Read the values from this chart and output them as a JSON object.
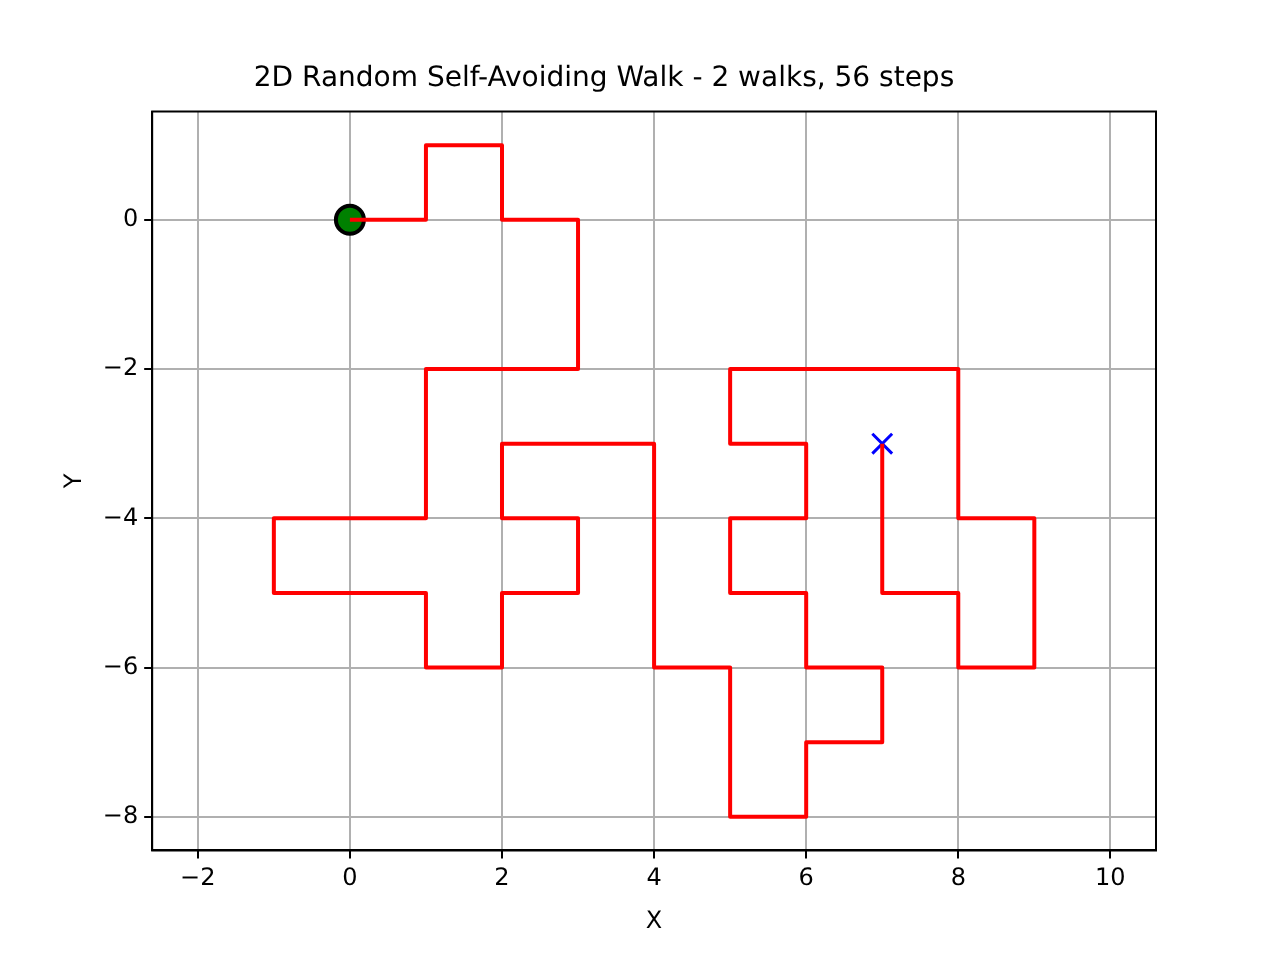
{
  "chart_data": {
    "type": "line",
    "title": "2D Random Self-Avoiding Walk - 2 walks, 56 steps",
    "xlabel": "X",
    "ylabel": "Y",
    "series": [
      {
        "type": "line",
        "color": "#ff0000",
        "marker": "none",
        "x": [
          0,
          1,
          1,
          2,
          2,
          3,
          3,
          1,
          1,
          -1,
          -1,
          1,
          1,
          2,
          2,
          3,
          3,
          2,
          2,
          4,
          4,
          5,
          5,
          6,
          6,
          7,
          7,
          6,
          6,
          5,
          5,
          6,
          6,
          5,
          5,
          8,
          8,
          9,
          9,
          8,
          8,
          7,
          7
        ],
        "values": [
          0,
          0,
          1,
          1,
          0,
          0,
          -2,
          -2,
          -4,
          -4,
          -5,
          -5,
          -6,
          -6,
          -5,
          -5,
          -4,
          -4,
          -3,
          -3,
          -6,
          -6,
          -8,
          -8,
          -7,
          -7,
          -6,
          -6,
          -5,
          -5,
          -4,
          -4,
          -3,
          -3,
          -2,
          -2,
          -4,
          -4,
          -6,
          -6,
          -5,
          -5,
          -3
        ]
      },
      {
        "type": "scatter",
        "color": "#008000",
        "marker": "circle",
        "x": [
          0
        ],
        "values": [
          0
        ]
      },
      {
        "type": "scatter",
        "color": "#0000ff",
        "marker": "cross",
        "x": [
          7
        ],
        "values": [
          -3
        ]
      }
    ],
    "xlim": [
      -2.6,
      10.6
    ],
    "xticks": [
      -2,
      0,
      2,
      4,
      6,
      8,
      10
    ],
    "ylim": [
      -8.45,
      1.45
    ],
    "yticks": [
      -8,
      -6,
      -4,
      -2,
      0
    ],
    "grid": true,
    "legend": false
  }
}
